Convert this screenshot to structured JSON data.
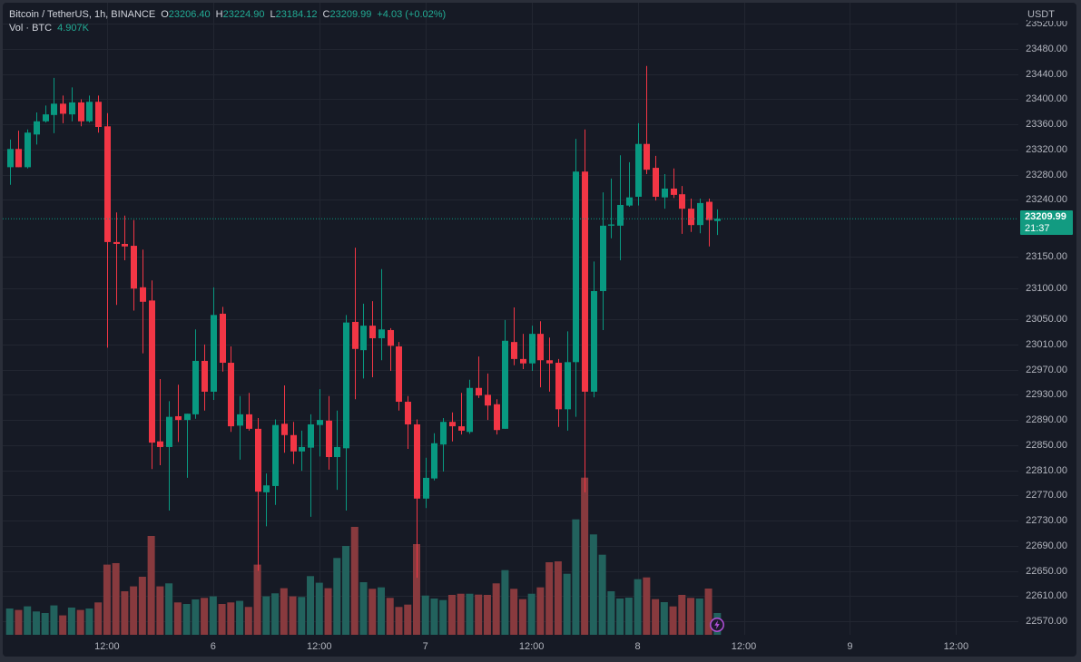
{
  "header": {
    "symbol": "Bitcoin / TetherUS, 1h, BINANCE",
    "o_label": "O",
    "o_value": "23206.40",
    "h_label": "H",
    "h_value": "23224.90",
    "l_label": "L",
    "l_value": "23184.12",
    "c_label": "C",
    "c_value": "23209.99",
    "change": "+4.03 (+0.02%)",
    "vol_label": "Vol · BTC",
    "vol_value": "4.907K"
  },
  "price_axis": {
    "currency": "USDT",
    "last_price": "23209.99",
    "countdown": "21:37"
  },
  "icons": {
    "realtime_marker": "lightning-icon"
  },
  "colors": {
    "background": "#161a25",
    "grid": "#222631",
    "up": "#089981",
    "down": "#f23645",
    "volume_up": "#22625d",
    "volume_down": "#883a3e",
    "last_price_badge": "#129b81",
    "axis_text": "#b2b5be",
    "marker": "#b14fd8"
  },
  "chart_data": {
    "type": "candlestick",
    "title": "Bitcoin / TetherUS, 1h, BINANCE",
    "interval": "1h",
    "xlabel": "",
    "ylabel": "USDT",
    "grid": true,
    "legend_position": "top-left",
    "ylim": [
      22548.4,
      23557.9
    ],
    "last_price": 23209.99,
    "yticks": [
      23520,
      23480,
      23440,
      23400,
      23360,
      23320,
      23280,
      23240,
      23150,
      23100,
      23050,
      23010,
      22970,
      22930,
      22890,
      22850,
      22810,
      22770,
      22730,
      22690,
      22650,
      22610,
      22570
    ],
    "ytick_labels": [
      "23520.00",
      "23480.00",
      "23440.00",
      "23400.00",
      "23360.00",
      "23320.00",
      "23280.00",
      "23240.00",
      "23150.00",
      "23100.00",
      "23050.00",
      "23010.00",
      "22970.00",
      "22930.00",
      "22890.00",
      "22850.00",
      "22810.00",
      "22770.00",
      "22730.00",
      "22690.00",
      "22650.00",
      "22610.00",
      "22570.00"
    ],
    "xticks": [
      {
        "label": "12:00",
        "index": 11
      },
      {
        "label": "6",
        "index": 23
      },
      {
        "label": "12:00",
        "index": 35
      },
      {
        "label": "7",
        "index": 47
      },
      {
        "label": "12:00",
        "index": 59
      },
      {
        "label": "8",
        "index": 71
      },
      {
        "label": "12:00",
        "index": 83
      },
      {
        "label": "9",
        "index": 95
      },
      {
        "label": "12:00",
        "index": 107
      }
    ],
    "x": [
      "5 01:00",
      "5 02:00",
      "5 03:00",
      "5 04:00",
      "5 05:00",
      "5 06:00",
      "5 07:00",
      "5 08:00",
      "5 09:00",
      "5 10:00",
      "5 11:00",
      "5 12:00",
      "5 13:00",
      "5 14:00",
      "5 15:00",
      "5 16:00",
      "5 17:00",
      "5 18:00",
      "5 19:00",
      "5 20:00",
      "5 21:00",
      "5 22:00",
      "5 23:00",
      "6 00:00",
      "6 01:00",
      "6 02:00",
      "6 03:00",
      "6 04:00",
      "6 05:00",
      "6 06:00",
      "6 07:00",
      "6 08:00",
      "6 09:00",
      "6 10:00",
      "6 11:00",
      "6 12:00",
      "6 13:00",
      "6 14:00",
      "6 15:00",
      "6 16:00",
      "6 17:00",
      "6 18:00",
      "6 19:00",
      "6 20:00",
      "6 21:00",
      "6 22:00",
      "6 23:00",
      "7 00:00",
      "7 01:00",
      "7 02:00",
      "7 03:00",
      "7 04:00",
      "7 05:00",
      "7 06:00",
      "7 07:00",
      "7 08:00",
      "7 09:00",
      "7 10:00",
      "7 11:00",
      "7 12:00",
      "7 13:00",
      "7 14:00",
      "7 15:00",
      "7 16:00",
      "7 17:00",
      "7 18:00",
      "7 19:00",
      "7 20:00",
      "7 21:00",
      "7 22:00",
      "7 23:00",
      "8 00:00",
      "8 01:00",
      "8 02:00",
      "8 03:00",
      "8 04:00",
      "8 05:00",
      "8 06:00",
      "8 07:00",
      "8 08:00",
      "8 09:00"
    ],
    "open": [
      23292,
      23321,
      23292,
      23344,
      23365,
      23375,
      23393,
      23376,
      23395,
      23365,
      23396,
      23357,
      23173,
      23170,
      23167,
      23101,
      23080,
      22856,
      22847,
      22896,
      22890,
      22899,
      22984,
      22935,
      23059,
      22981,
      22881,
      22899,
      22876,
      22775,
      22785,
      22884,
      22866,
      22840,
      22846,
      22882,
      22889,
      22831,
      22845,
      23046,
      23001,
      23040,
      23020,
      23033,
      23007,
      22919,
      22883,
      22765,
      22797,
      22851,
      22887,
      22880,
      22871,
      22941,
      22930,
      22915,
      22876,
      23014,
      22987,
      22980,
      23027,
      22985,
      22981,
      22907,
      22982,
      23285,
      22935,
      23095,
      23199,
      23199,
      23231,
      23245,
      23329,
      23291,
      23244,
      23258,
      23249,
      23226,
      23200,
      23237,
      23206.4
    ],
    "high": [
      23336,
      23350,
      23352,
      23379,
      23390,
      23434,
      23406,
      23419,
      23400,
      23406,
      23406,
      23378,
      23220,
      23215,
      23208,
      23161,
      23112,
      22955,
      22920,
      22946,
      22900,
      23034,
      23010,
      23101,
      23070,
      23007,
      22928,
      22933,
      22893,
      22805,
      22891,
      22945,
      22887,
      22873,
      22899,
      22939,
      22928,
      22905,
      23057,
      23164,
      23075,
      23079,
      23130,
      23036,
      23014,
      22928,
      22891,
      22830,
      22869,
      22893,
      22902,
      22933,
      22954,
      22991,
      22964,
      22923,
      23049,
      23069,
      23027,
      23040,
      23047,
      23021,
      22987,
      23031,
      23337,
      23352,
      23142,
      23252,
      23274,
      23311,
      23300,
      23362,
      23453,
      23310,
      23281,
      23290,
      23262,
      23242,
      23242,
      23242,
      23224.9
    ],
    "low": [
      23264,
      23292,
      23290,
      23328,
      23363,
      23346,
      23362,
      23365,
      23357,
      23363,
      23347,
      23005,
      23073,
      23144,
      23064,
      22996,
      22812,
      22818,
      22746,
      22855,
      22798,
      22892,
      22905,
      22922,
      22967,
      22871,
      22827,
      22873,
      22650,
      22721,
      22755,
      22838,
      22820,
      22809,
      22736,
      22832,
      22811,
      22779,
      22746,
      22923,
      22956,
      22958,
      22985,
      22968,
      22905,
      22844,
      22639,
      22750,
      22794,
      22808,
      22856,
      22867,
      22868,
      22925,
      22890,
      22867,
      22876,
      22977,
      22971,
      22968,
      22942,
      22935,
      22879,
      22873,
      22895,
      22775,
      22926,
      23033,
      23179,
      23144,
      23229,
      23231,
      23281,
      23239,
      23226,
      23243,
      23186,
      23189,
      23187,
      23166,
      23184.12
    ],
    "close": [
      23321,
      23292,
      23347,
      23365,
      23376,
      23393,
      23377,
      23395,
      23365,
      23396,
      23356,
      23173,
      23170,
      23166,
      23099,
      23078,
      22854,
      22847,
      22895,
      22890,
      22900,
      22984,
      22935,
      23057,
      22981,
      22880,
      22899,
      22876,
      22776,
      22786,
      22882,
      22866,
      22840,
      22847,
      22883,
      22890,
      22831,
      22847,
      23045,
      23003,
      23040,
      23020,
      23034,
      23008,
      22919,
      22883,
      22765,
      22798,
      22853,
      22887,
      22880,
      22873,
      22941,
      22929,
      22913,
      22874,
      23016,
      22987,
      22980,
      23027,
      22985,
      22980,
      22907,
      22982,
      23285,
      22935,
      23095,
      23199,
      23201,
      23232,
      23244,
      23329,
      23288,
      23245,
      23258,
      23248,
      23226,
      23200,
      23235,
      23208,
      23209.99
    ],
    "volume_unit": "K BTC",
    "volume": [
      5.93,
      5.6,
      6.42,
      5.26,
      4.91,
      6.63,
      4.38,
      6.14,
      5.6,
      5.93,
      7.3,
      15.83,
      16.16,
      9.82,
      10.92,
      13.09,
      22.29,
      10.92,
      11.6,
      7.3,
      6.95,
      7.98,
      8.32,
      8.67,
      6.95,
      7.3,
      7.65,
      6.28,
      15.83,
      8.67,
      9.35,
      10.51,
      8.67,
      8.53,
      13.23,
      11.74,
      10.51,
      17.32,
      20.04,
      24.34,
      11.86,
      10.37,
      10.7,
      8.32,
      6.28,
      6.81,
      20.45,
      8.85,
      8.18,
      7.83,
      9.0,
      9.26,
      9.26,
      9.06,
      9.0,
      11.6,
      14.58,
      10.37,
      8.04,
      9.26,
      10.7,
      16.36,
      16.56,
      13.76,
      26.03,
      35.44,
      22.64,
      18.06,
      9.82,
      8.18,
      8.38,
      12.54,
      12.94,
      8.04,
      7.36,
      6.4,
      9.0,
      8.32,
      8.18,
      10.43,
      4.907
    ]
  }
}
